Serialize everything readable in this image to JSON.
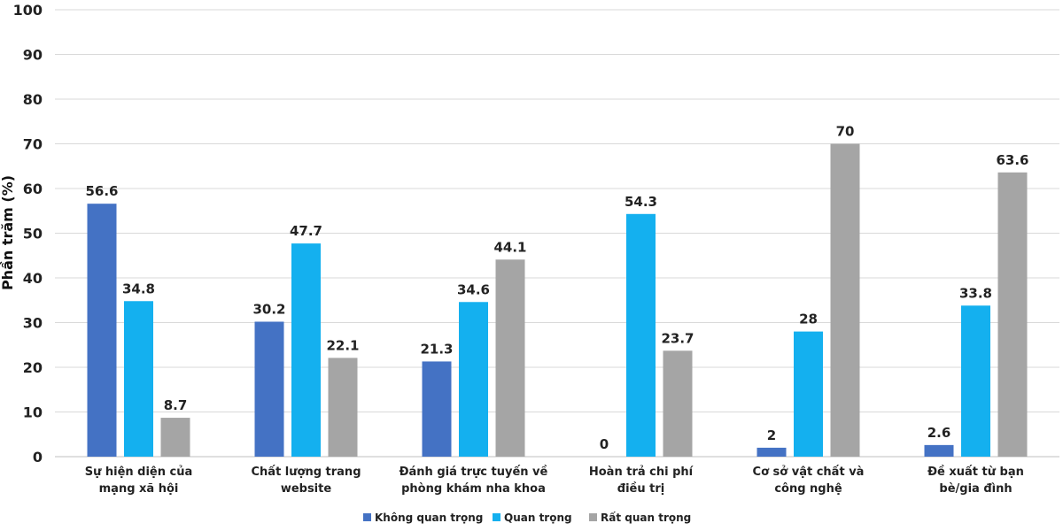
{
  "chart_data": {
    "type": "bar",
    "title": "",
    "xlabel": "",
    "ylabel": "Phần trăm (%)",
    "ylim": [
      0,
      100
    ],
    "yticks": [
      0,
      10,
      20,
      30,
      40,
      50,
      60,
      70,
      80,
      90,
      100
    ],
    "grid": true,
    "legend_position": "bottom",
    "categories": [
      [
        "Sự hiện diện của",
        "mạng xã hội"
      ],
      [
        "Chất lượng trang",
        "website"
      ],
      [
        "Đánh giá trực tuyến về",
        "phòng khám nha khoa"
      ],
      [
        "Hoàn trả chi phí",
        "điều trị"
      ],
      [
        "Cơ sở vật chất và",
        "công nghệ"
      ],
      [
        "Đề xuất từ bạn",
        "bè/gia đình"
      ]
    ],
    "series": [
      {
        "name": "Không quan trọng",
        "color": "#4472C4",
        "values": [
          56.6,
          30.2,
          21.3,
          0,
          2,
          2.6
        ]
      },
      {
        "name": "Quan trọng",
        "color": "#14B0EF",
        "values": [
          34.8,
          47.7,
          34.6,
          54.3,
          28,
          33.8
        ]
      },
      {
        "name": "Rất quan trọng",
        "color": "#A5A5A5",
        "values": [
          8.7,
          22.1,
          44.1,
          23.7,
          70,
          63.6
        ]
      }
    ]
  }
}
